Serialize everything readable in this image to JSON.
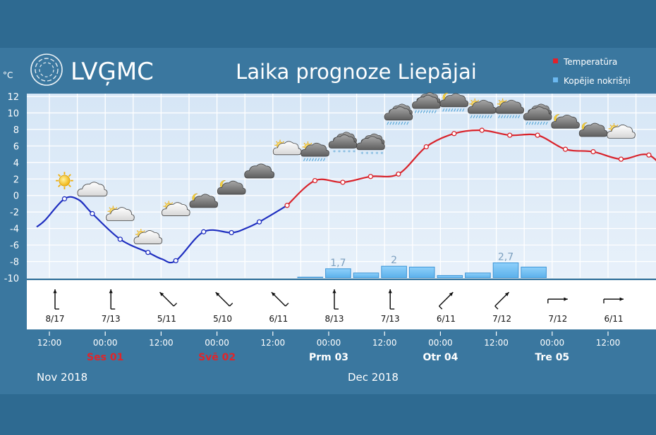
{
  "header": {
    "logo_text": "LVĢMC",
    "title": "Laika prognoze Liepājai",
    "unit": "°C"
  },
  "legend": {
    "items": [
      {
        "label": "Temperatūra",
        "color": "#e2202a"
      },
      {
        "label": "Kopējie nokrišņi",
        "color": "#6bb8f0"
      }
    ],
    "placement": "top-right"
  },
  "footer": {
    "month_left": "Nov 2018",
    "month_right": "Dec 2018",
    "time_labels": [
      "12:00",
      "00:00",
      "12:00",
      "00:00",
      "12:00",
      "00:00",
      "12:00",
      "00:00",
      "12:00",
      "00:00",
      "12:00"
    ],
    "day_labels": [
      {
        "label": "Ses 01",
        "color": "#e0252a",
        "slot": 1
      },
      {
        "label": "Svē 02",
        "color": "#e0252a",
        "slot": 3
      },
      {
        "label": "Prm 03",
        "color": "#ffffff",
        "slot": 5
      },
      {
        "label": "Otr 04",
        "color": "#ffffff",
        "slot": 7
      },
      {
        "label": "Tre 05",
        "color": "#ffffff",
        "slot": 9
      }
    ]
  },
  "chart_data": {
    "type": "line",
    "y_range": [
      -10,
      12
    ],
    "y_ticks": [
      "12",
      "10",
      "8",
      "6",
      "4",
      "2",
      "0",
      "-2",
      "-4",
      "-6",
      "-8",
      "-10"
    ],
    "grid": true,
    "temperature": {
      "name": "Temperatūra",
      "points": [
        {
          "t": 0.0,
          "v": -3.8
        },
        {
          "t": 0.3,
          "v": -3.0
        },
        {
          "t": 1.0,
          "v": -0.4
        },
        {
          "t": 1.5,
          "v": -0.5
        },
        {
          "t": 2.0,
          "v": -2.2
        },
        {
          "t": 3.0,
          "v": -5.3
        },
        {
          "t": 4.0,
          "v": -6.9
        },
        {
          "t": 4.5,
          "v": -7.7
        },
        {
          "t": 5.0,
          "v": -7.9
        },
        {
          "t": 6.0,
          "v": -4.4
        },
        {
          "t": 7.0,
          "v": -4.5
        },
        {
          "t": 7.5,
          "v": -4.0
        },
        {
          "t": 8.0,
          "v": -3.2
        },
        {
          "t": 9.0,
          "v": -1.2
        },
        {
          "t": 10.0,
          "v": 1.8
        },
        {
          "t": 11.0,
          "v": 1.6
        },
        {
          "t": 12.0,
          "v": 2.3
        },
        {
          "t": 13.0,
          "v": 2.6
        },
        {
          "t": 14.0,
          "v": 5.9
        },
        {
          "t": 15.0,
          "v": 7.5
        },
        {
          "t": 16.0,
          "v": 7.9
        },
        {
          "t": 17.0,
          "v": 7.3
        },
        {
          "t": 18.0,
          "v": 7.3
        },
        {
          "t": 19.0,
          "v": 5.6
        },
        {
          "t": 20.0,
          "v": 5.3
        },
        {
          "t": 21.0,
          "v": 4.4
        },
        {
          "t": 22.0,
          "v": 4.9
        },
        {
          "t": 22.8,
          "v": 2.1
        }
      ]
    },
    "precipitation": {
      "name": "Kopējie nokrišņi",
      "bars": [
        {
          "slot": 10,
          "v": 0.1,
          "label": ""
        },
        {
          "slot": 11,
          "v": 1.1,
          "label": "1,7"
        },
        {
          "slot": 12,
          "v": 0.6,
          "label": ""
        },
        {
          "slot": 13,
          "v": 1.4,
          "label": "2"
        },
        {
          "slot": 14,
          "v": 1.3,
          "label": ""
        },
        {
          "slot": 15,
          "v": 0.3,
          "label": ""
        },
        {
          "slot": 16,
          "v": 0.6,
          "label": ""
        },
        {
          "slot": 17,
          "v": 1.8,
          "label": "2,7"
        },
        {
          "slot": 18,
          "v": 1.3,
          "label": ""
        }
      ]
    },
    "wind": [
      {
        "label": "8/17",
        "dir": "north"
      },
      {
        "label": "7/13",
        "dir": "north"
      },
      {
        "label": "5/11",
        "dir": "north-west"
      },
      {
        "label": "5/10",
        "dir": "north-west"
      },
      {
        "label": "6/11",
        "dir": "north-west"
      },
      {
        "label": "8/13",
        "dir": "north"
      },
      {
        "label": "7/13",
        "dir": "north"
      },
      {
        "label": "6/11",
        "dir": "north-east"
      },
      {
        "label": "7/12",
        "dir": "north-east"
      },
      {
        "label": "7/12",
        "dir": "east"
      },
      {
        "label": "6/11",
        "dir": "east"
      }
    ],
    "weather_icons": [
      {
        "t": 1.0,
        "v": 1.8,
        "icon": "sun-icon"
      },
      {
        "t": 2.0,
        "v": 0.4,
        "icon": "cloud-icon"
      },
      {
        "t": 3.0,
        "v": -2.6,
        "icon": "partly-cloudy-icon"
      },
      {
        "t": 4.0,
        "v": -5.4,
        "icon": "partly-cloudy-icon"
      },
      {
        "t": 5.0,
        "v": -2.0,
        "icon": "partly-cloudy-icon"
      },
      {
        "t": 6.0,
        "v": -1.0,
        "icon": "partly-cloudy-night-icon"
      },
      {
        "t": 7.0,
        "v": 0.6,
        "icon": "partly-cloudy-night-icon"
      },
      {
        "t": 8.0,
        "v": 2.6,
        "icon": "dark-cloud-icon"
      },
      {
        "t": 9.0,
        "v": 5.4,
        "icon": "partly-cloudy-icon"
      },
      {
        "t": 10.0,
        "v": 5.2,
        "icon": "partly-cloudy-rain-icon"
      },
      {
        "t": 11.0,
        "v": 6.2,
        "icon": "cloud-snow-icon"
      },
      {
        "t": 12.0,
        "v": 6.0,
        "icon": "cloud-snow-icon"
      },
      {
        "t": 13.0,
        "v": 9.6,
        "icon": "cloud-rain-icon"
      },
      {
        "t": 14.0,
        "v": 11.0,
        "icon": "cloud-rain-icon"
      },
      {
        "t": 15.0,
        "v": 11.2,
        "icon": "partly-cloudy-night-rain-icon"
      },
      {
        "t": 16.0,
        "v": 10.4,
        "icon": "partly-cloudy-rain-icon"
      },
      {
        "t": 17.0,
        "v": 10.4,
        "icon": "partly-cloudy-rain-icon"
      },
      {
        "t": 18.0,
        "v": 9.6,
        "icon": "cloud-rain-icon"
      },
      {
        "t": 19.0,
        "v": 8.6,
        "icon": "partly-cloudy-night-icon"
      },
      {
        "t": 20.0,
        "v": 7.6,
        "icon": "partly-cloudy-night-icon"
      },
      {
        "t": 21.0,
        "v": 7.4,
        "icon": "partly-cloudy-icon"
      }
    ]
  }
}
